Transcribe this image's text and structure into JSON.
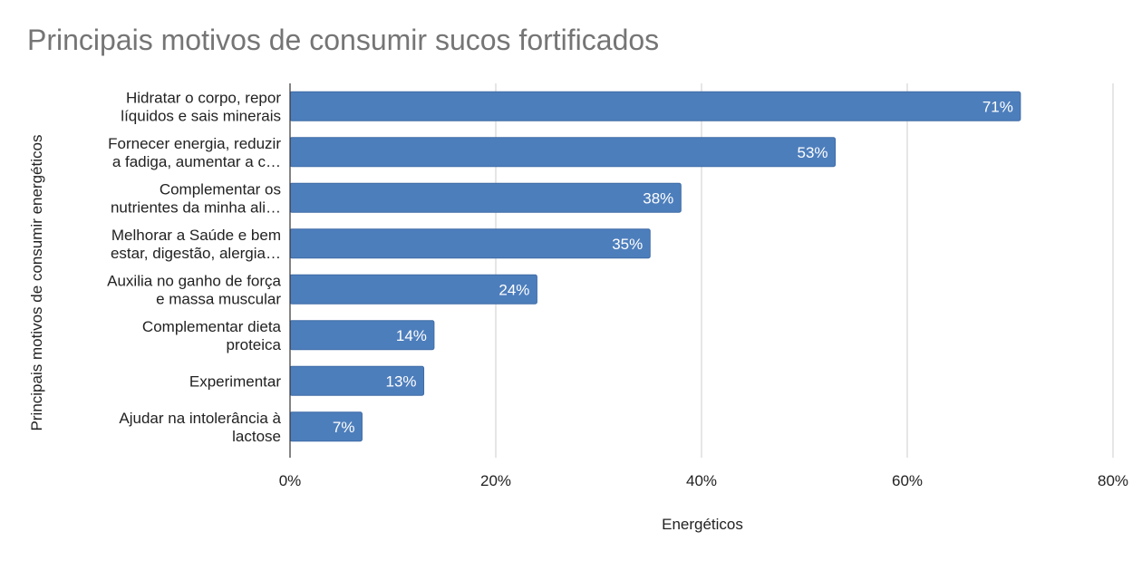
{
  "chart_data": {
    "type": "bar",
    "orientation": "horizontal",
    "title": "Principais motivos de consumir sucos fortificados",
    "xlabel": "Energéticos",
    "ylabel": "Principais motivos de consumir energéticos",
    "categories": [
      [
        "Hidratar o corpo, repor",
        "líquidos e sais minerais"
      ],
      [
        "Fornecer energia, reduzir",
        "a fadiga, aumentar a c…"
      ],
      [
        "Complementar os",
        "nutrientes da minha ali…"
      ],
      [
        "Melhorar a Saúde e bem",
        "estar, digestão, alergia…"
      ],
      [
        "Auxilia no ganho de força",
        "e massa muscular"
      ],
      [
        "Complementar dieta",
        "proteica"
      ],
      [
        "Experimentar"
      ],
      [
        "Ajudar na intolerância à",
        "lactose"
      ]
    ],
    "values": [
      71,
      53,
      38,
      35,
      24,
      14,
      13,
      7
    ],
    "data_labels": [
      "71%",
      "53%",
      "38%",
      "35%",
      "24%",
      "14%",
      "13%",
      "7%"
    ],
    "x_ticks": [
      "0%",
      "20%",
      "40%",
      "60%",
      "80%"
    ],
    "xlim": [
      0,
      80
    ],
    "grid": true,
    "bar_color": "#4d7ebc",
    "label_color": "#ffffff",
    "grid_color": "#cccccc"
  }
}
